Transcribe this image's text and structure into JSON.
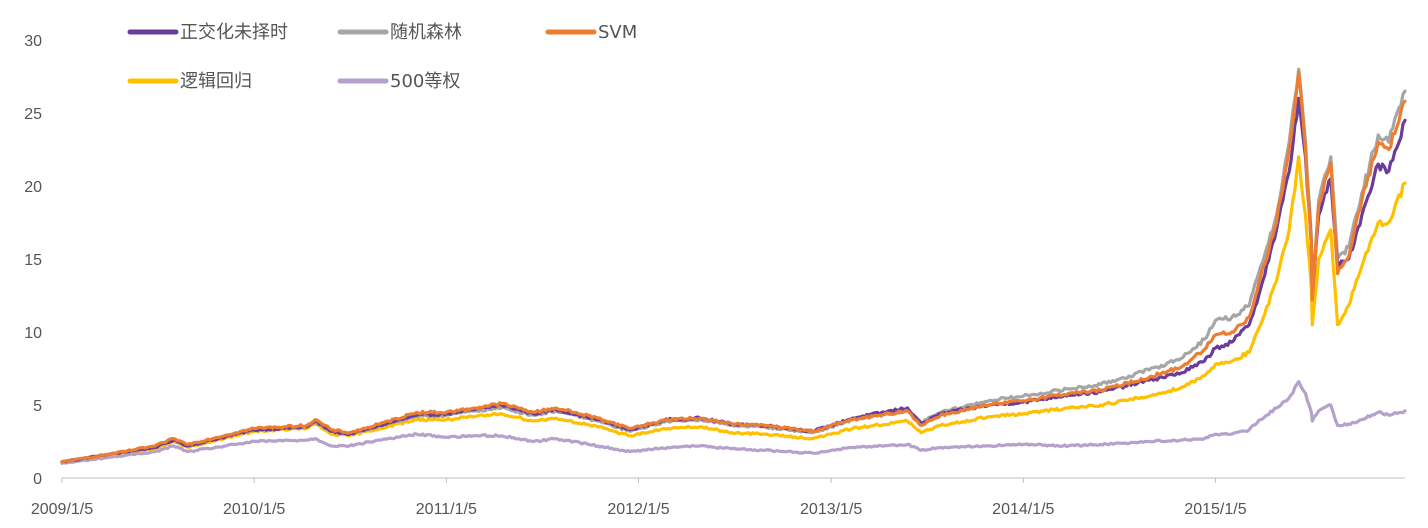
{
  "chart_data": {
    "type": "line",
    "title": "",
    "xlabel": "",
    "ylabel": "",
    "ylim": [
      0,
      30
    ],
    "yticks": [
      0,
      5,
      10,
      15,
      20,
      25,
      30
    ],
    "x_range": [
      "2009-01-05",
      "2015-12-31"
    ],
    "xtick_labels": [
      "2009/1/5",
      "2010/1/5",
      "2011/1/5",
      "2012/1/5",
      "2013/1/5",
      "2014/1/5",
      "2015/1/5"
    ],
    "grid": false,
    "legend_position": "top-left",
    "series": [
      {
        "name": "正交化未择时",
        "color": "#6a3d9a",
        "points": [
          [
            "2009-01-05",
            1.1
          ],
          [
            "2009-04-01",
            1.6
          ],
          [
            "2009-07-01",
            2.1
          ],
          [
            "2009-08-05",
            2.6
          ],
          [
            "2009-09-01",
            2.2
          ],
          [
            "2009-12-01",
            3.0
          ],
          [
            "2010-01-05",
            3.3
          ],
          [
            "2010-04-15",
            3.5
          ],
          [
            "2010-05-01",
            3.9
          ],
          [
            "2010-06-01",
            3.2
          ],
          [
            "2010-07-05",
            3.0
          ],
          [
            "2010-09-01",
            3.6
          ],
          [
            "2010-11-10",
            4.3
          ],
          [
            "2011-01-05",
            4.4
          ],
          [
            "2011-03-01",
            4.7
          ],
          [
            "2011-04-20",
            5.0
          ],
          [
            "2011-06-20",
            4.4
          ],
          [
            "2011-08-01",
            4.7
          ],
          [
            "2011-10-20",
            4.0
          ],
          [
            "2011-12-20",
            3.3
          ],
          [
            "2012-03-01",
            4.0
          ],
          [
            "2012-05-01",
            4.1
          ],
          [
            "2012-07-01",
            3.7
          ],
          [
            "2012-09-01",
            3.6
          ],
          [
            "2012-12-01",
            3.2
          ],
          [
            "2013-01-05",
            3.6
          ],
          [
            "2013-02-15",
            4.1
          ],
          [
            "2013-05-30",
            4.8
          ],
          [
            "2013-06-25",
            3.7
          ],
          [
            "2013-08-01",
            4.4
          ],
          [
            "2013-11-01",
            5.0
          ],
          [
            "2014-01-05",
            5.2
          ],
          [
            "2014-04-01",
            5.7
          ],
          [
            "2014-06-01",
            5.9
          ],
          [
            "2014-09-01",
            6.7
          ],
          [
            "2014-11-01",
            7.2
          ],
          [
            "2014-12-15",
            8.0
          ],
          [
            "2015-01-05",
            8.9
          ],
          [
            "2015-02-05",
            9.3
          ],
          [
            "2015-03-10",
            10.5
          ],
          [
            "2015-04-01",
            13.0
          ],
          [
            "2015-05-01",
            17.0
          ],
          [
            "2015-05-25",
            21.0
          ],
          [
            "2015-06-12",
            26.0
          ],
          [
            "2015-06-25",
            22.0
          ],
          [
            "2015-07-06",
            16.0
          ],
          [
            "2015-07-08",
            12.5
          ],
          [
            "2015-07-20",
            18.0
          ],
          [
            "2015-08-12",
            20.5
          ],
          [
            "2015-08-25",
            14.5
          ],
          [
            "2015-09-15",
            15.0
          ],
          [
            "2015-10-10",
            18.0
          ],
          [
            "2015-11-10",
            21.5
          ],
          [
            "2015-11-30",
            21.0
          ],
          [
            "2015-12-31",
            24.5
          ]
        ]
      },
      {
        "name": "随机森林",
        "color": "#a6a6a6",
        "points": [
          [
            "2009-01-05",
            1.1
          ],
          [
            "2009-04-01",
            1.6
          ],
          [
            "2009-07-01",
            2.1
          ],
          [
            "2009-08-05",
            2.6
          ],
          [
            "2009-09-01",
            2.2
          ],
          [
            "2009-12-01",
            3.0
          ],
          [
            "2010-01-05",
            3.3
          ],
          [
            "2010-04-15",
            3.5
          ],
          [
            "2010-05-01",
            3.8
          ],
          [
            "2010-06-01",
            3.2
          ],
          [
            "2010-07-05",
            3.0
          ],
          [
            "2010-09-01",
            3.6
          ],
          [
            "2010-11-10",
            4.2
          ],
          [
            "2011-01-05",
            4.3
          ],
          [
            "2011-03-01",
            4.6
          ],
          [
            "2011-04-20",
            4.8
          ],
          [
            "2011-06-20",
            4.3
          ],
          [
            "2011-08-01",
            4.6
          ],
          [
            "2011-10-20",
            3.9
          ],
          [
            "2011-12-20",
            3.2
          ],
          [
            "2012-03-01",
            3.9
          ],
          [
            "2012-05-01",
            4.0
          ],
          [
            "2012-07-01",
            3.6
          ],
          [
            "2012-09-01",
            3.5
          ],
          [
            "2012-12-01",
            3.1
          ],
          [
            "2013-01-05",
            3.5
          ],
          [
            "2013-02-15",
            4.0
          ],
          [
            "2013-05-30",
            4.6
          ],
          [
            "2013-06-25",
            3.8
          ],
          [
            "2013-08-01",
            4.5
          ],
          [
            "2013-11-01",
            5.3
          ],
          [
            "2014-01-05",
            5.6
          ],
          [
            "2014-04-01",
            6.1
          ],
          [
            "2014-06-01",
            6.4
          ],
          [
            "2014-09-01",
            7.4
          ],
          [
            "2014-11-01",
            8.2
          ],
          [
            "2014-12-15",
            9.5
          ],
          [
            "2015-01-05",
            10.8
          ],
          [
            "2015-02-05",
            11.0
          ],
          [
            "2015-03-10",
            11.8
          ],
          [
            "2015-04-01",
            14.5
          ],
          [
            "2015-05-01",
            18.0
          ],
          [
            "2015-05-25",
            23.0
          ],
          [
            "2015-06-12",
            28.0
          ],
          [
            "2015-06-25",
            23.0
          ],
          [
            "2015-07-06",
            16.5
          ],
          [
            "2015-07-08",
            12.8
          ],
          [
            "2015-07-20",
            19.0
          ],
          [
            "2015-08-12",
            22.0
          ],
          [
            "2015-08-25",
            15.0
          ],
          [
            "2015-09-15",
            15.8
          ],
          [
            "2015-10-10",
            19.5
          ],
          [
            "2015-11-10",
            23.5
          ],
          [
            "2015-11-30",
            23.0
          ],
          [
            "2015-12-31",
            26.5
          ]
        ]
      },
      {
        "name": "SVM",
        "color": "#ed7d31",
        "points": [
          [
            "2009-01-05",
            1.1
          ],
          [
            "2009-04-01",
            1.6
          ],
          [
            "2009-07-01",
            2.2
          ],
          [
            "2009-08-05",
            2.7
          ],
          [
            "2009-09-01",
            2.3
          ],
          [
            "2009-12-01",
            3.1
          ],
          [
            "2010-01-05",
            3.4
          ],
          [
            "2010-04-15",
            3.6
          ],
          [
            "2010-05-01",
            4.0
          ],
          [
            "2010-06-01",
            3.3
          ],
          [
            "2010-07-05",
            3.1
          ],
          [
            "2010-09-01",
            3.7
          ],
          [
            "2010-11-10",
            4.5
          ],
          [
            "2011-01-05",
            4.5
          ],
          [
            "2011-03-01",
            4.8
          ],
          [
            "2011-04-20",
            5.1
          ],
          [
            "2011-06-20",
            4.5
          ],
          [
            "2011-08-01",
            4.8
          ],
          [
            "2011-10-20",
            4.1
          ],
          [
            "2011-12-20",
            3.4
          ],
          [
            "2012-03-01",
            4.0
          ],
          [
            "2012-05-01",
            4.1
          ],
          [
            "2012-07-01",
            3.7
          ],
          [
            "2012-09-01",
            3.6
          ],
          [
            "2012-12-01",
            3.2
          ],
          [
            "2013-01-05",
            3.6
          ],
          [
            "2013-02-15",
            4.0
          ],
          [
            "2013-05-30",
            4.6
          ],
          [
            "2013-06-25",
            3.6
          ],
          [
            "2013-08-01",
            4.3
          ],
          [
            "2013-11-01",
            5.0
          ],
          [
            "2014-01-05",
            5.3
          ],
          [
            "2014-04-01",
            5.8
          ],
          [
            "2014-06-01",
            6.0
          ],
          [
            "2014-09-01",
            6.9
          ],
          [
            "2014-11-01",
            7.6
          ],
          [
            "2014-12-15",
            8.8
          ],
          [
            "2015-01-05",
            9.8
          ],
          [
            "2015-02-05",
            10.0
          ],
          [
            "2015-03-10",
            11.0
          ],
          [
            "2015-04-01",
            13.8
          ],
          [
            "2015-05-01",
            17.5
          ],
          [
            "2015-05-25",
            22.5
          ],
          [
            "2015-06-12",
            27.8
          ],
          [
            "2015-06-25",
            22.5
          ],
          [
            "2015-07-06",
            16.0
          ],
          [
            "2015-07-08",
            12.2
          ],
          [
            "2015-07-20",
            18.8
          ],
          [
            "2015-08-12",
            21.6
          ],
          [
            "2015-08-25",
            14.0
          ],
          [
            "2015-09-15",
            15.2
          ],
          [
            "2015-10-10",
            19.0
          ],
          [
            "2015-11-10",
            23.0
          ],
          [
            "2015-11-30",
            22.5
          ],
          [
            "2015-12-31",
            25.8
          ]
        ]
      },
      {
        "name": "逻辑回归",
        "color": "#ffc000",
        "points": [
          [
            "2009-01-05",
            1.1
          ],
          [
            "2009-04-01",
            1.6
          ],
          [
            "2009-07-01",
            2.0
          ],
          [
            "2009-08-05",
            2.5
          ],
          [
            "2009-09-01",
            2.1
          ],
          [
            "2009-12-01",
            2.9
          ],
          [
            "2010-01-05",
            3.2
          ],
          [
            "2010-04-15",
            3.4
          ],
          [
            "2010-05-01",
            3.7
          ],
          [
            "2010-06-01",
            3.0
          ],
          [
            "2010-07-05",
            2.9
          ],
          [
            "2010-09-01",
            3.4
          ],
          [
            "2010-11-10",
            4.0
          ],
          [
            "2011-01-05",
            4.0
          ],
          [
            "2011-03-01",
            4.2
          ],
          [
            "2011-04-20",
            4.4
          ],
          [
            "2011-06-20",
            3.9
          ],
          [
            "2011-08-01",
            4.1
          ],
          [
            "2011-10-20",
            3.5
          ],
          [
            "2011-12-20",
            2.9
          ],
          [
            "2012-03-01",
            3.4
          ],
          [
            "2012-05-01",
            3.5
          ],
          [
            "2012-07-01",
            3.1
          ],
          [
            "2012-09-01",
            3.0
          ],
          [
            "2012-12-01",
            2.7
          ],
          [
            "2013-01-05",
            3.0
          ],
          [
            "2013-02-15",
            3.4
          ],
          [
            "2013-05-30",
            3.9
          ],
          [
            "2013-06-25",
            3.1
          ],
          [
            "2013-08-01",
            3.6
          ],
          [
            "2013-11-01",
            4.2
          ],
          [
            "2014-01-05",
            4.4
          ],
          [
            "2014-04-01",
            4.8
          ],
          [
            "2014-06-01",
            5.0
          ],
          [
            "2014-09-01",
            5.6
          ],
          [
            "2014-11-01",
            6.2
          ],
          [
            "2014-12-15",
            7.0
          ],
          [
            "2015-01-05",
            7.8
          ],
          [
            "2015-02-05",
            8.0
          ],
          [
            "2015-03-10",
            8.6
          ],
          [
            "2015-04-01",
            10.5
          ],
          [
            "2015-05-01",
            13.5
          ],
          [
            "2015-05-25",
            17.0
          ],
          [
            "2015-06-12",
            22.0
          ],
          [
            "2015-06-25",
            18.0
          ],
          [
            "2015-07-06",
            13.0
          ],
          [
            "2015-07-08",
            10.5
          ],
          [
            "2015-07-20",
            15.0
          ],
          [
            "2015-08-12",
            17.0
          ],
          [
            "2015-08-25",
            10.5
          ],
          [
            "2015-09-15",
            11.8
          ],
          [
            "2015-10-10",
            14.5
          ],
          [
            "2015-11-10",
            17.5
          ],
          [
            "2015-11-30",
            17.5
          ],
          [
            "2015-12-31",
            20.2
          ]
        ]
      },
      {
        "name": "500等权",
        "color": "#b4a2cc",
        "points": [
          [
            "2009-01-05",
            1.0
          ],
          [
            "2009-04-01",
            1.4
          ],
          [
            "2009-07-01",
            1.8
          ],
          [
            "2009-08-05",
            2.2
          ],
          [
            "2009-09-01",
            1.8
          ],
          [
            "2009-12-01",
            2.3
          ],
          [
            "2010-01-05",
            2.5
          ],
          [
            "2010-04-15",
            2.6
          ],
          [
            "2010-05-01",
            2.7
          ],
          [
            "2010-06-01",
            2.2
          ],
          [
            "2010-07-05",
            2.2
          ],
          [
            "2010-09-01",
            2.6
          ],
          [
            "2010-11-10",
            3.0
          ],
          [
            "2011-01-05",
            2.8
          ],
          [
            "2011-03-01",
            2.9
          ],
          [
            "2011-04-20",
            2.9
          ],
          [
            "2011-06-20",
            2.5
          ],
          [
            "2011-08-01",
            2.7
          ],
          [
            "2011-10-20",
            2.2
          ],
          [
            "2011-12-20",
            1.8
          ],
          [
            "2012-03-01",
            2.1
          ],
          [
            "2012-05-01",
            2.2
          ],
          [
            "2012-07-01",
            2.0
          ],
          [
            "2012-09-01",
            1.9
          ],
          [
            "2012-12-01",
            1.7
          ],
          [
            "2013-01-05",
            1.9
          ],
          [
            "2013-02-15",
            2.1
          ],
          [
            "2013-05-30",
            2.3
          ],
          [
            "2013-06-25",
            1.9
          ],
          [
            "2013-08-01",
            2.1
          ],
          [
            "2013-11-01",
            2.2
          ],
          [
            "2014-01-05",
            2.3
          ],
          [
            "2014-04-01",
            2.2
          ],
          [
            "2014-06-01",
            2.3
          ],
          [
            "2014-09-01",
            2.5
          ],
          [
            "2014-11-01",
            2.6
          ],
          [
            "2014-12-15",
            2.7
          ],
          [
            "2015-01-05",
            3.0
          ],
          [
            "2015-02-05",
            3.0
          ],
          [
            "2015-03-10",
            3.3
          ],
          [
            "2015-04-01",
            4.0
          ],
          [
            "2015-05-01",
            4.8
          ],
          [
            "2015-05-25",
            5.5
          ],
          [
            "2015-06-12",
            6.6
          ],
          [
            "2015-06-25",
            5.8
          ],
          [
            "2015-07-06",
            4.5
          ],
          [
            "2015-07-08",
            3.9
          ],
          [
            "2015-07-20",
            4.6
          ],
          [
            "2015-08-12",
            5.0
          ],
          [
            "2015-08-25",
            3.6
          ],
          [
            "2015-09-15",
            3.7
          ],
          [
            "2015-10-10",
            4.0
          ],
          [
            "2015-11-10",
            4.5
          ],
          [
            "2015-11-30",
            4.3
          ],
          [
            "2015-12-31",
            4.6
          ]
        ]
      }
    ]
  }
}
